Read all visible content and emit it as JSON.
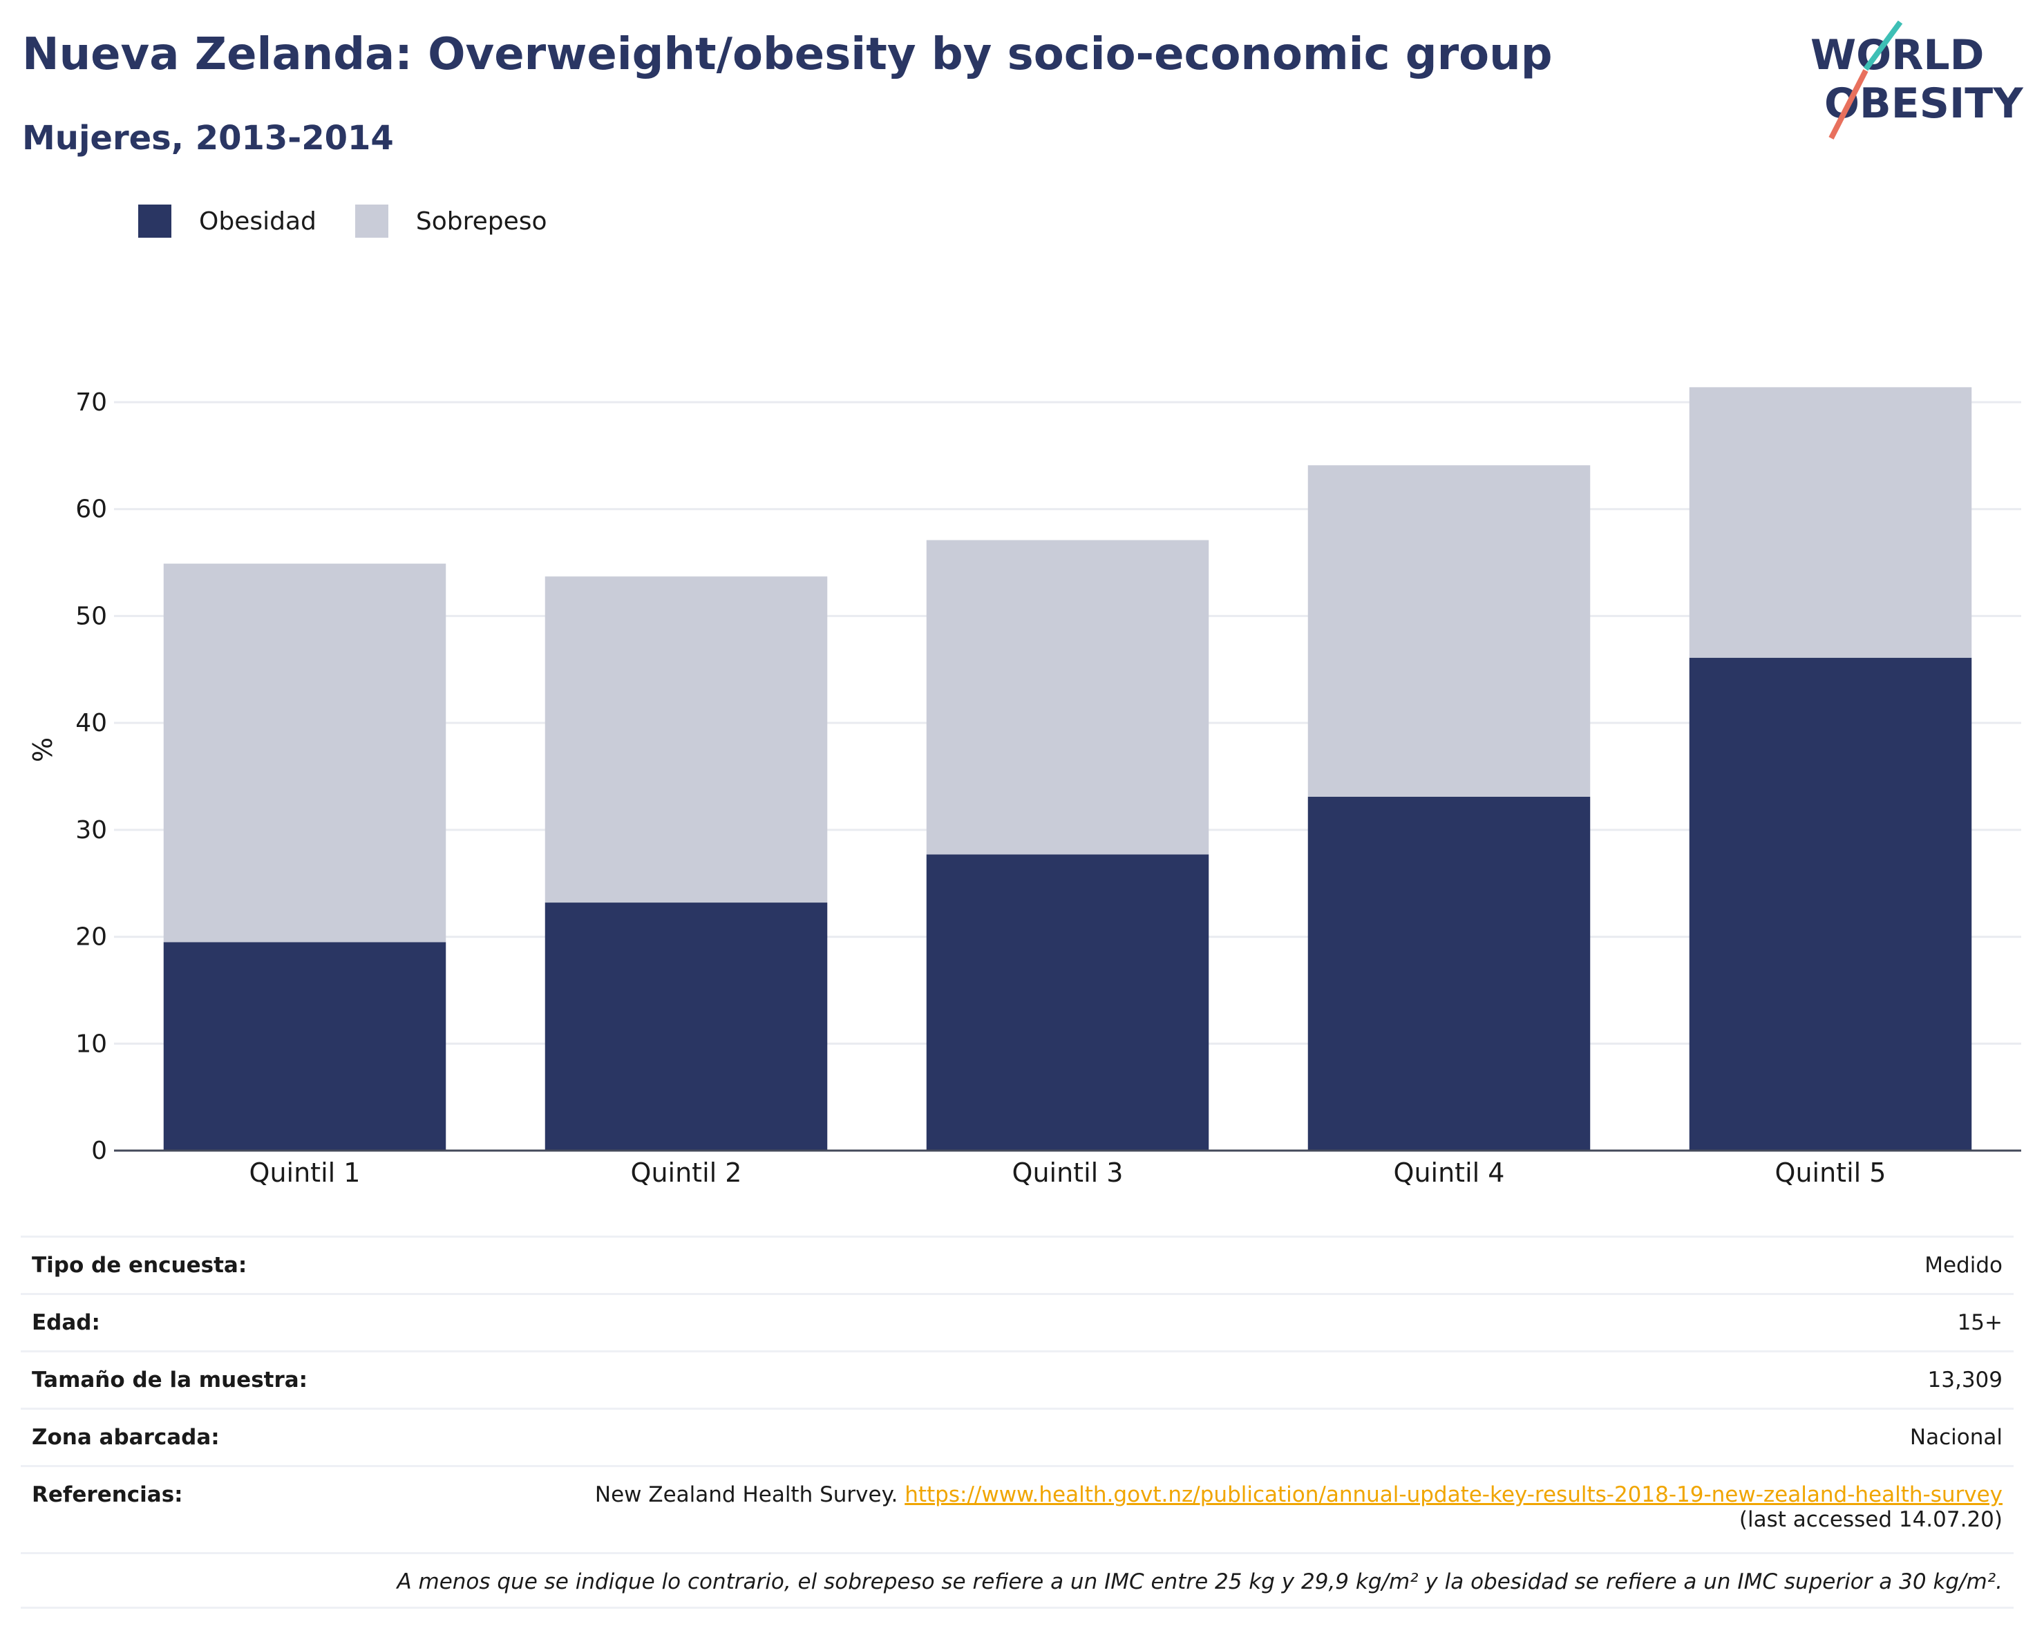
{
  "header": {
    "title": "Nueva Zelanda: Overweight/obesity by socio-economic group",
    "subtitle": "Mujeres, 2013-2014"
  },
  "logo": {
    "line1": "WORLD",
    "line2": "OBESITY"
  },
  "colors": {
    "obesidad": "#2a3663",
    "sobrepeso": "#c9ccd8",
    "title": "#2a3663",
    "link": "#f0a500",
    "logo_teal": "#3dbfb5",
    "logo_coral": "#e8705d"
  },
  "chart_data": {
    "type": "bar",
    "stacked": true,
    "categories": [
      "Quintil 1",
      "Quintil 2",
      "Quintil 3",
      "Quintil 4",
      "Quintil 5"
    ],
    "series": [
      {
        "name": "Obesidad",
        "values": [
          19.5,
          23.2,
          27.7,
          33.1,
          46.1
        ]
      },
      {
        "name": "Sobrepeso",
        "values": [
          35.4,
          30.5,
          29.4,
          31.0,
          25.3
        ]
      }
    ],
    "ylabel": "%",
    "ylim": [
      0,
      70
    ],
    "yticks": [
      0,
      10,
      20,
      30,
      40,
      50,
      60,
      70
    ],
    "grid": true,
    "legend_position": "top-left"
  },
  "meta": {
    "rows": [
      {
        "label": "Tipo de encuesta:",
        "value": "Medido"
      },
      {
        "label": "Edad:",
        "value": "15+"
      },
      {
        "label": "Tamaño de la muestra:",
        "value": "13,309"
      },
      {
        "label": "Zona abarcada:",
        "value": "Nacional"
      }
    ],
    "references": {
      "label": "Referencias:",
      "text": "New Zealand Health Survey.",
      "link": "https://www.health.govt.nz/publication/annual-update-key-results-2018-19-new-zealand-health-survey",
      "accessed": "(last accessed 14.07.20)"
    },
    "footnote": "A menos que se indique lo contrario, el sobrepeso se refiere a un IMC entre 25 kg y 29,9 kg/m² y la obesidad se refiere a un IMC superior a 30 kg/m²."
  }
}
